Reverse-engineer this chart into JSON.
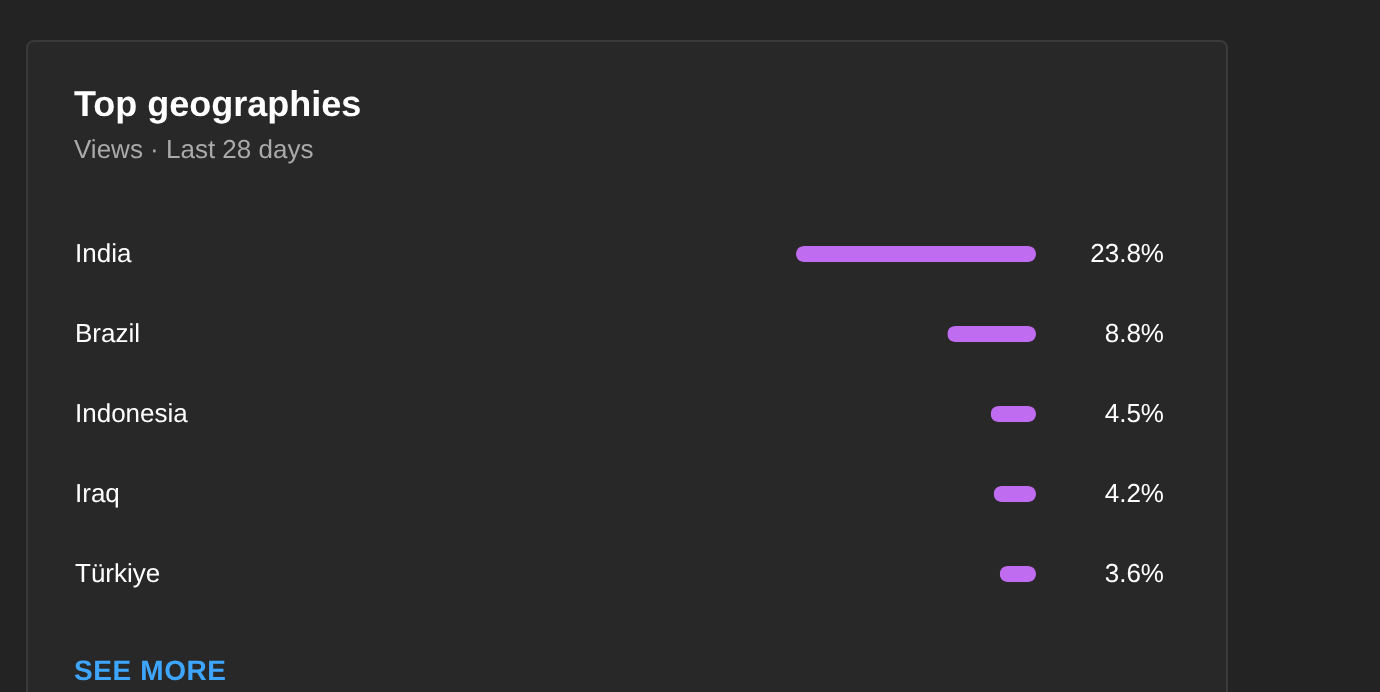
{
  "chart_data": {
    "type": "bar",
    "orientation": "horizontal",
    "title": "Top geographies",
    "subtitle": "Views · Last 28 days",
    "categories": [
      "India",
      "Brazil",
      "Indonesia",
      "Iraq",
      "Türkiye"
    ],
    "values": [
      23.8,
      8.8,
      4.5,
      4.2,
      3.6
    ],
    "value_labels": [
      "23.8%",
      "8.8%",
      "4.5%",
      "4.2%",
      "3.6%"
    ],
    "color": "#bf6cf0",
    "annotations": [
      "SEE MORE"
    ]
  }
}
